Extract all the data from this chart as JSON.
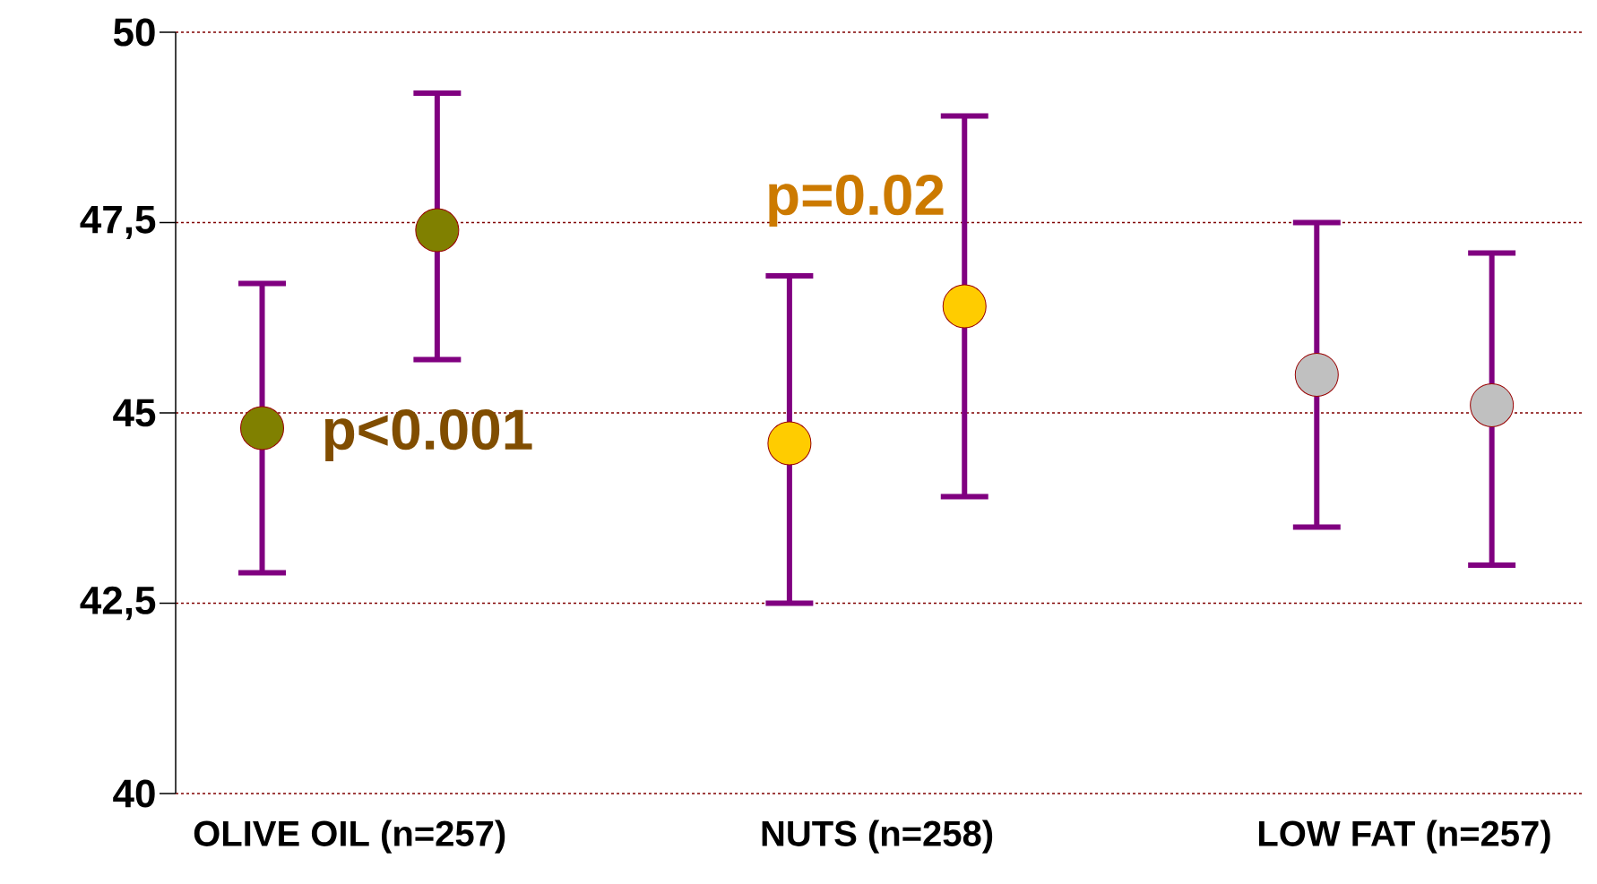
{
  "chart_data": {
    "type": "scatter",
    "categories": [
      "OLIVE OIL (n=257)",
      "NUTS (n=258)",
      "LOW FAT (n=257)"
    ],
    "series": [
      {
        "values": [
          44.8,
          44.6,
          45.5
        ],
        "colors": [
          "#808000",
          "#ffcc00",
          "#c0c0c0"
        ],
        "errors": [
          [
            42.9,
            46.7
          ],
          [
            42.5,
            46.8
          ],
          [
            43.5,
            47.5
          ]
        ]
      },
      {
        "values": [
          47.4,
          46.4,
          45.1
        ],
        "colors": [
          "#808000",
          "#ffcc00",
          "#c0c0c0"
        ],
        "errors": [
          [
            45.7,
            49.2
          ],
          [
            43.9,
            48.9
          ],
          [
            43.0,
            47.1
          ]
        ]
      }
    ],
    "ylim": [
      40,
      50
    ],
    "yticks": [
      40,
      {
        "value": 42.5,
        "label": "42,5"
      },
      45,
      {
        "value": 47.5,
        "label": "47,5"
      },
      50
    ],
    "grid": "y",
    "marker": "circle",
    "annotations": [
      "p<0.001",
      "p=0.02"
    ]
  }
}
